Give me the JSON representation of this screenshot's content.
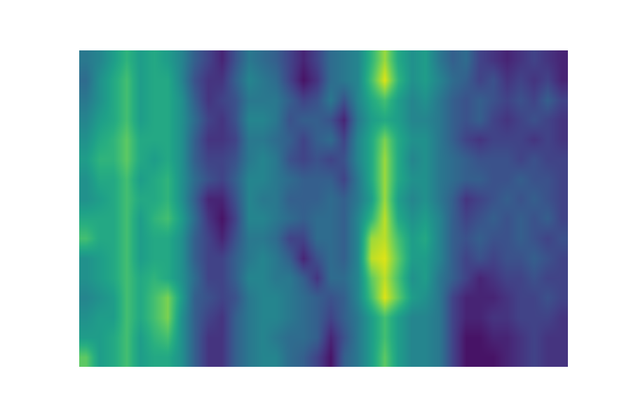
{
  "chart_data": {
    "type": "heatmap",
    "color": "Viridis",
    "tick_labels": false,
    "zlim": [
      0,
      1
    ],
    "cells": [
      [
        0.4,
        0.45,
        0.55,
        0.65,
        0.55,
        0.6,
        0.55,
        0.45,
        0.3,
        0.2,
        0.1,
        0.25,
        0.4,
        0.35,
        0.3,
        0.2,
        0.1,
        0.2,
        0.35,
        0.4,
        0.45,
        0.65,
        0.85,
        0.6,
        0.5,
        0.55,
        0.4,
        0.3,
        0.35,
        0.2,
        0.15,
        0.1,
        0.15,
        0.2,
        0.15,
        0.1
      ],
      [
        0.35,
        0.5,
        0.6,
        0.7,
        0.55,
        0.6,
        0.6,
        0.45,
        0.25,
        0.15,
        0.15,
        0.3,
        0.45,
        0.4,
        0.35,
        0.2,
        0.05,
        0.15,
        0.35,
        0.4,
        0.45,
        0.7,
        0.95,
        0.65,
        0.5,
        0.55,
        0.45,
        0.35,
        0.3,
        0.2,
        0.25,
        0.15,
        0.2,
        0.15,
        0.2,
        0.1
      ],
      [
        0.4,
        0.5,
        0.6,
        0.7,
        0.55,
        0.6,
        0.6,
        0.5,
        0.3,
        0.15,
        0.2,
        0.25,
        0.4,
        0.4,
        0.4,
        0.3,
        0.2,
        0.25,
        0.4,
        0.25,
        0.45,
        0.6,
        0.7,
        0.55,
        0.45,
        0.5,
        0.4,
        0.3,
        0.25,
        0.3,
        0.25,
        0.2,
        0.25,
        0.2,
        0.3,
        0.2
      ],
      [
        0.45,
        0.55,
        0.6,
        0.7,
        0.55,
        0.6,
        0.6,
        0.5,
        0.35,
        0.2,
        0.15,
        0.25,
        0.45,
        0.45,
        0.4,
        0.25,
        0.3,
        0.3,
        0.25,
        0.1,
        0.4,
        0.55,
        0.6,
        0.55,
        0.45,
        0.45,
        0.4,
        0.3,
        0.25,
        0.3,
        0.2,
        0.15,
        0.2,
        0.25,
        0.2,
        0.15
      ],
      [
        0.5,
        0.6,
        0.65,
        0.75,
        0.6,
        0.6,
        0.6,
        0.5,
        0.3,
        0.15,
        0.15,
        0.2,
        0.4,
        0.4,
        0.35,
        0.3,
        0.2,
        0.3,
        0.35,
        0.2,
        0.45,
        0.6,
        0.8,
        0.6,
        0.5,
        0.5,
        0.4,
        0.3,
        0.2,
        0.15,
        0.2,
        0.2,
        0.2,
        0.15,
        0.2,
        0.15
      ],
      [
        0.55,
        0.65,
        0.65,
        0.75,
        0.6,
        0.55,
        0.6,
        0.5,
        0.3,
        0.2,
        0.2,
        0.25,
        0.4,
        0.45,
        0.4,
        0.25,
        0.2,
        0.25,
        0.2,
        0.25,
        0.45,
        0.6,
        0.85,
        0.6,
        0.45,
        0.5,
        0.4,
        0.35,
        0.3,
        0.25,
        0.25,
        0.25,
        0.2,
        0.25,
        0.2,
        0.2
      ],
      [
        0.5,
        0.6,
        0.6,
        0.7,
        0.55,
        0.6,
        0.65,
        0.5,
        0.35,
        0.25,
        0.2,
        0.3,
        0.45,
        0.45,
        0.4,
        0.35,
        0.3,
        0.3,
        0.3,
        0.2,
        0.4,
        0.6,
        0.85,
        0.6,
        0.5,
        0.5,
        0.4,
        0.35,
        0.3,
        0.3,
        0.25,
        0.25,
        0.3,
        0.25,
        0.25,
        0.2
      ],
      [
        0.5,
        0.55,
        0.6,
        0.7,
        0.6,
        0.6,
        0.65,
        0.5,
        0.3,
        0.1,
        0.1,
        0.25,
        0.45,
        0.4,
        0.4,
        0.3,
        0.3,
        0.3,
        0.35,
        0.3,
        0.4,
        0.55,
        0.85,
        0.55,
        0.45,
        0.5,
        0.4,
        0.3,
        0.15,
        0.2,
        0.25,
        0.3,
        0.25,
        0.3,
        0.25,
        0.2
      ],
      [
        0.6,
        0.6,
        0.6,
        0.7,
        0.55,
        0.65,
        0.7,
        0.55,
        0.35,
        0.15,
        0.05,
        0.2,
        0.45,
        0.45,
        0.4,
        0.35,
        0.3,
        0.35,
        0.35,
        0.3,
        0.45,
        0.65,
        0.9,
        0.6,
        0.5,
        0.55,
        0.45,
        0.3,
        0.2,
        0.25,
        0.3,
        0.25,
        0.3,
        0.25,
        0.3,
        0.2
      ],
      [
        0.7,
        0.6,
        0.6,
        0.7,
        0.55,
        0.6,
        0.6,
        0.5,
        0.3,
        0.2,
        0.1,
        0.25,
        0.4,
        0.4,
        0.35,
        0.2,
        0.2,
        0.35,
        0.35,
        0.3,
        0.45,
        0.85,
        0.9,
        0.7,
        0.55,
        0.6,
        0.45,
        0.3,
        0.25,
        0.3,
        0.25,
        0.25,
        0.3,
        0.25,
        0.2,
        0.25
      ],
      [
        0.5,
        0.55,
        0.6,
        0.7,
        0.55,
        0.6,
        0.6,
        0.5,
        0.3,
        0.2,
        0.2,
        0.3,
        0.4,
        0.45,
        0.4,
        0.3,
        0.1,
        0.25,
        0.35,
        0.3,
        0.45,
        0.9,
        0.95,
        0.75,
        0.55,
        0.55,
        0.45,
        0.3,
        0.2,
        0.25,
        0.2,
        0.25,
        0.25,
        0.3,
        0.25,
        0.2
      ],
      [
        0.5,
        0.55,
        0.6,
        0.7,
        0.6,
        0.65,
        0.6,
        0.5,
        0.35,
        0.2,
        0.2,
        0.3,
        0.45,
        0.45,
        0.4,
        0.4,
        0.3,
        0.15,
        0.35,
        0.35,
        0.45,
        0.75,
        0.9,
        0.7,
        0.5,
        0.55,
        0.4,
        0.3,
        0.2,
        0.1,
        0.15,
        0.2,
        0.2,
        0.25,
        0.2,
        0.2
      ],
      [
        0.45,
        0.5,
        0.55,
        0.7,
        0.6,
        0.7,
        0.8,
        0.55,
        0.3,
        0.25,
        0.2,
        0.25,
        0.4,
        0.45,
        0.45,
        0.4,
        0.35,
        0.3,
        0.25,
        0.3,
        0.45,
        0.7,
        0.95,
        0.75,
        0.55,
        0.5,
        0.4,
        0.2,
        0.1,
        0.1,
        0.1,
        0.15,
        0.2,
        0.2,
        0.25,
        0.2
      ],
      [
        0.5,
        0.55,
        0.55,
        0.7,
        0.6,
        0.7,
        0.8,
        0.5,
        0.3,
        0.2,
        0.15,
        0.3,
        0.4,
        0.45,
        0.45,
        0.4,
        0.35,
        0.3,
        0.2,
        0.3,
        0.4,
        0.55,
        0.7,
        0.55,
        0.45,
        0.45,
        0.4,
        0.2,
        0.1,
        0.1,
        0.15,
        0.15,
        0.2,
        0.2,
        0.2,
        0.15
      ],
      [
        0.55,
        0.55,
        0.6,
        0.7,
        0.55,
        0.65,
        0.7,
        0.5,
        0.3,
        0.15,
        0.15,
        0.3,
        0.4,
        0.45,
        0.4,
        0.35,
        0.35,
        0.3,
        0.1,
        0.25,
        0.4,
        0.55,
        0.7,
        0.55,
        0.45,
        0.45,
        0.4,
        0.2,
        0.05,
        0.05,
        0.1,
        0.1,
        0.15,
        0.2,
        0.15,
        0.15
      ],
      [
        0.75,
        0.55,
        0.6,
        0.7,
        0.55,
        0.6,
        0.6,
        0.5,
        0.3,
        0.15,
        0.15,
        0.3,
        0.4,
        0.45,
        0.45,
        0.35,
        0.3,
        0.2,
        0.05,
        0.3,
        0.4,
        0.55,
        0.75,
        0.55,
        0.45,
        0.45,
        0.4,
        0.2,
        0.05,
        0.05,
        0.05,
        0.1,
        0.15,
        0.2,
        0.15,
        0.15
      ]
    ]
  }
}
